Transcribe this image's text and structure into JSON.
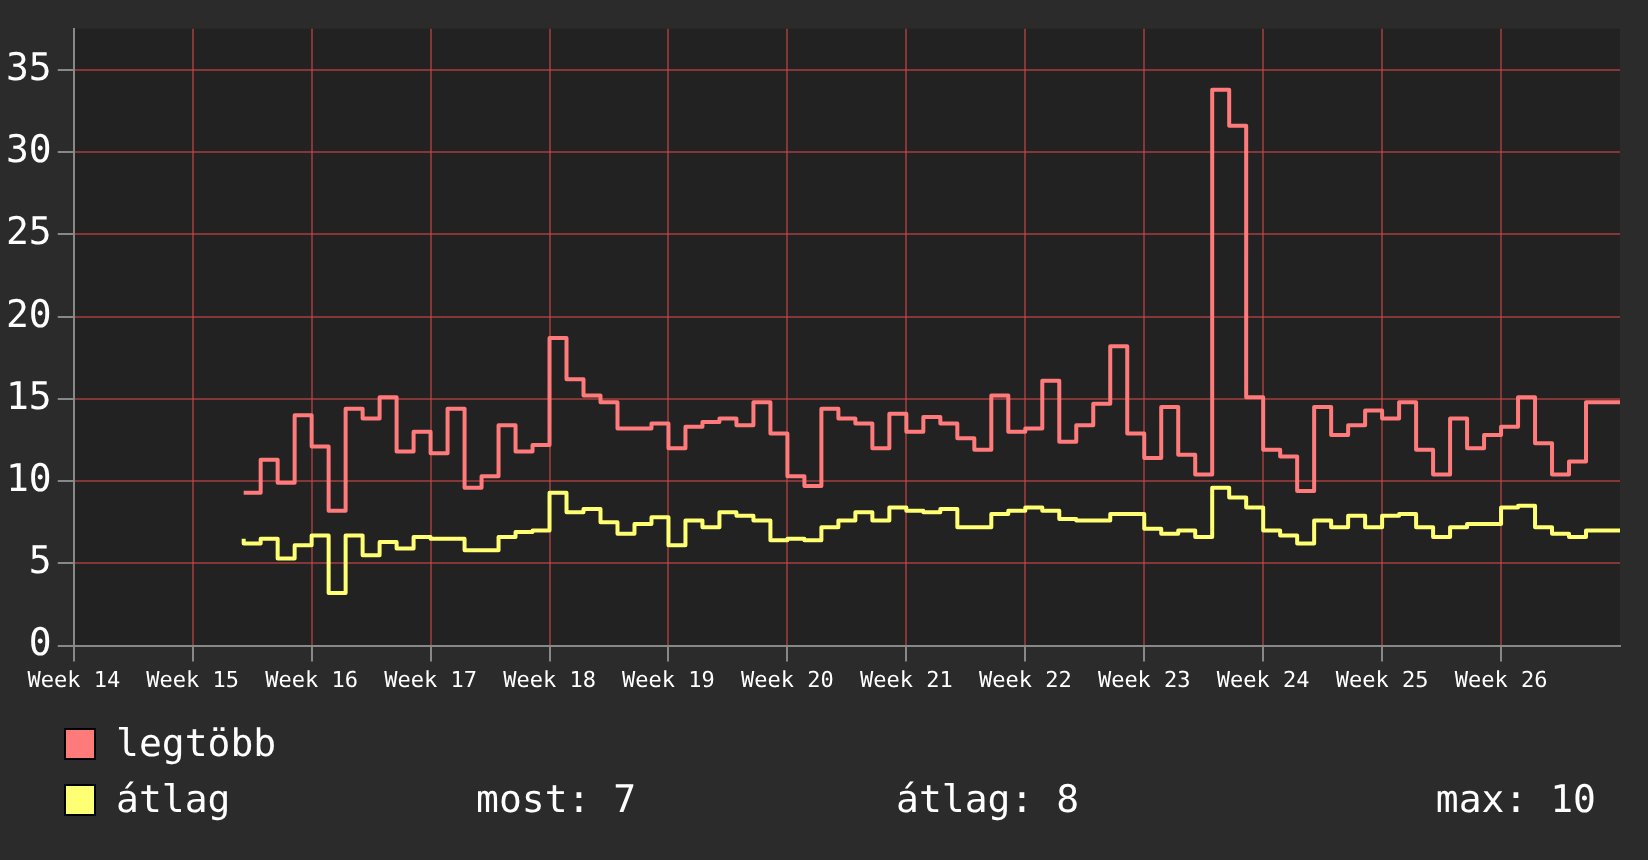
{
  "chart_data": {
    "type": "step",
    "categories": [
      "Week 14",
      null,
      null,
      null,
      null,
      null,
      null,
      "Week 15",
      null,
      null,
      null,
      null,
      null,
      null,
      "Week 16",
      null,
      null,
      null,
      null,
      null,
      null,
      "Week 17",
      null,
      null,
      null,
      null,
      null,
      null,
      "Week 18",
      null,
      null,
      null,
      null,
      null,
      null,
      "Week 19",
      null,
      null,
      null,
      null,
      null,
      null,
      "Week 20",
      null,
      null,
      null,
      null,
      null,
      null,
      "Week 21",
      null,
      null,
      null,
      null,
      null,
      null,
      "Week 22",
      null,
      null,
      null,
      null,
      null,
      null,
      "Week 23",
      null,
      null,
      null,
      null,
      null,
      null,
      "Week 24",
      null,
      null,
      null,
      null,
      null,
      null,
      "Week 25",
      null,
      null,
      null,
      null,
      null,
      null,
      "Week 26",
      null,
      null,
      null,
      null,
      null,
      null,
      null
    ],
    "series": [
      {
        "name": "legtöbb",
        "color": "#ff7b7b",
        "values": [
          null,
          null,
          null,
          null,
          null,
          null,
          null,
          null,
          null,
          null,
          9.3,
          9.3,
          11.3,
          9.9,
          14.0,
          12.1,
          8.2,
          14.4,
          13.8,
          15.1,
          11.8,
          13.0,
          11.7,
          14.4,
          9.6,
          10.3,
          13.4,
          11.8,
          12.2,
          18.7,
          16.2,
          15.2,
          14.8,
          13.2,
          13.2,
          13.5,
          12.0,
          13.3,
          13.6,
          13.8,
          13.4,
          14.8,
          12.9,
          10.3,
          9.7,
          14.4,
          13.8,
          13.5,
          12.0,
          14.1,
          13.0,
          13.9,
          13.5,
          12.6,
          11.9,
          15.2,
          13.0,
          13.2,
          16.1,
          12.4,
          13.4,
          14.7,
          18.2,
          12.9,
          11.4,
          14.5,
          11.6,
          10.4,
          33.8,
          31.6,
          15.1,
          11.9,
          11.5,
          9.4,
          14.5,
          12.8,
          13.4,
          14.3,
          13.8,
          14.8,
          11.9,
          10.4,
          13.8,
          12.0,
          12.8,
          13.3,
          15.1,
          12.3,
          10.4,
          11.2,
          14.8,
          14.8
        ]
      },
      {
        "name": "átlag",
        "color": "#ffff73",
        "values": [
          null,
          null,
          null,
          null,
          null,
          null,
          null,
          null,
          null,
          null,
          6.5,
          6.2,
          6.5,
          5.3,
          6.1,
          6.7,
          3.2,
          6.7,
          5.5,
          6.3,
          5.9,
          6.6,
          6.5,
          6.5,
          5.8,
          5.8,
          6.6,
          6.9,
          7.0,
          9.3,
          8.1,
          8.3,
          7.5,
          6.8,
          7.4,
          7.8,
          6.1,
          7.6,
          7.2,
          8.1,
          7.9,
          7.6,
          6.4,
          6.5,
          6.4,
          7.2,
          7.6,
          8.1,
          7.6,
          8.4,
          8.2,
          8.1,
          8.3,
          7.2,
          7.2,
          8.0,
          8.2,
          8.4,
          8.2,
          7.7,
          7.6,
          7.6,
          8.0,
          8.0,
          7.1,
          6.8,
          7.0,
          6.6,
          9.6,
          9.0,
          8.4,
          7.0,
          6.7,
          6.2,
          7.6,
          7.2,
          7.9,
          7.2,
          7.9,
          8.0,
          7.2,
          6.6,
          7.2,
          7.4,
          7.4,
          8.4,
          8.5,
          7.2,
          6.8,
          6.6,
          7.0,
          7.0
        ]
      }
    ],
    "ylim": [
      0,
      37.5
    ],
    "yticks": [
      0,
      5,
      10,
      15,
      20,
      25,
      30,
      35
    ],
    "grid": true,
    "legend": "bottom",
    "annotations": [
      "most: 7",
      "átlag: 8",
      "max: 10"
    ]
  }
}
